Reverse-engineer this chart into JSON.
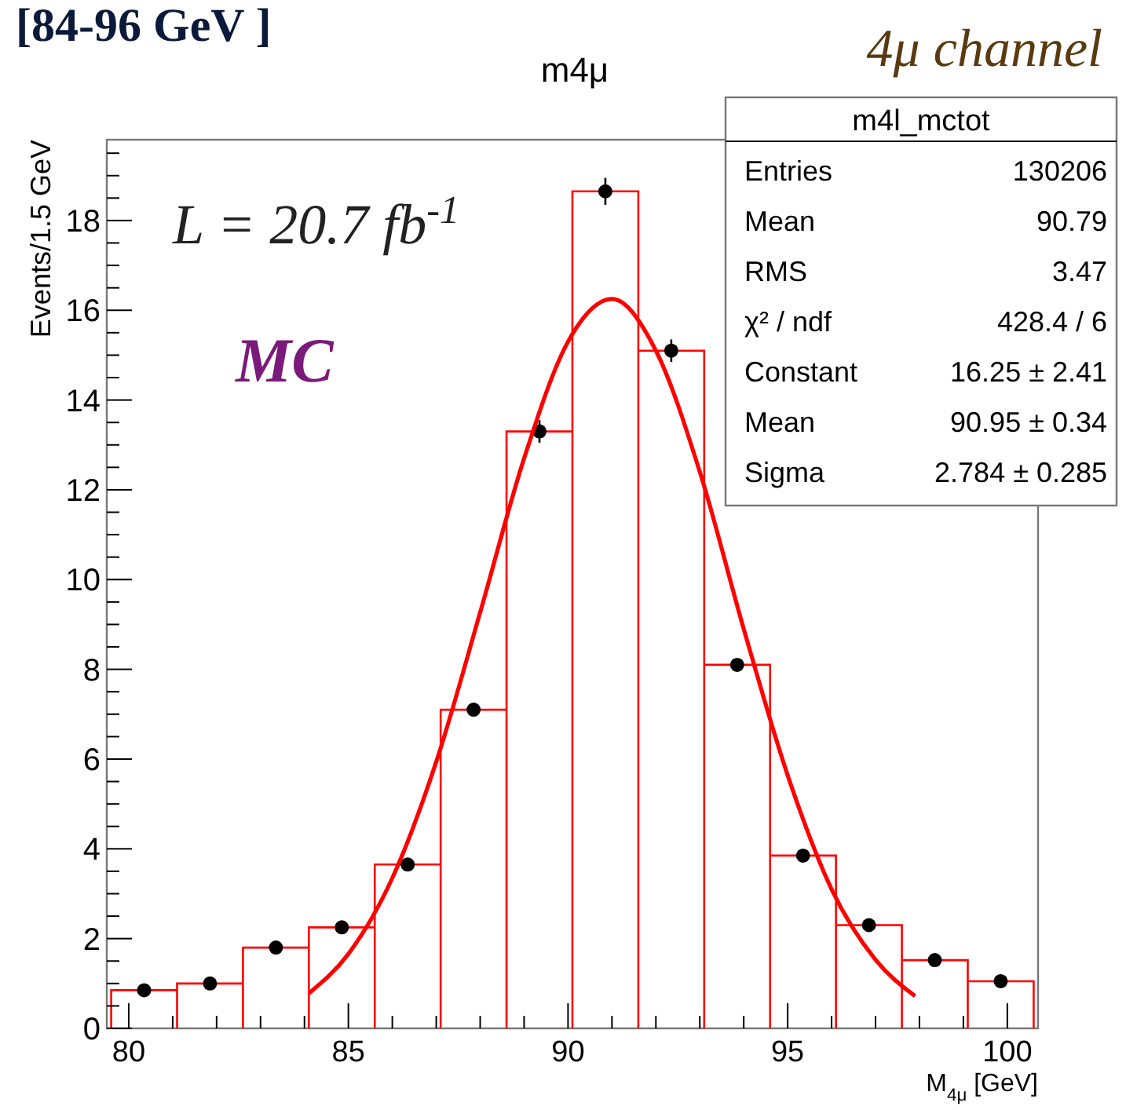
{
  "chart_data": {
    "type": "histogram",
    "title": "m4μ",
    "xlabel": "M$_{4μ}$ [GeV]",
    "ylabel": "Events/1.5 GeV",
    "bins": [
      79.6,
      81.1,
      82.6,
      84.1,
      85.6,
      87.1,
      88.6,
      90.1,
      91.6,
      93.1,
      94.6,
      96.1,
      97.6,
      99.1,
      100.6
    ],
    "values": [
      0.85,
      1.0,
      1.8,
      2.25,
      3.65,
      7.1,
      13.3,
      18.65,
      15.1,
      8.1,
      3.85,
      2.3,
      1.52,
      1.05
    ],
    "color": "#ff0000",
    "series": [
      {
        "type": "scatter",
        "color": "#000000",
        "x": [
          80.35,
          81.85,
          83.35,
          84.85,
          86.35,
          87.85,
          89.35,
          90.85,
          92.35,
          93.85,
          95.35,
          96.85,
          98.35,
          99.85
        ],
        "values": [
          0.85,
          1.0,
          1.8,
          2.25,
          3.65,
          7.1,
          13.3,
          18.65,
          15.1,
          8.1,
          3.85,
          2.3,
          1.52,
          1.05
        ],
        "errors": [
          null,
          null,
          null,
          null,
          null,
          null,
          0.25,
          0.3,
          0.25,
          null,
          null,
          null,
          null,
          null
        ]
      },
      {
        "type": "line",
        "marker": "none",
        "color": "#ff0000",
        "x": [
          84.1,
          85,
          86,
          87,
          88,
          89,
          90,
          91,
          92,
          93,
          94,
          95,
          96,
          97,
          97.9
        ],
        "values": [
          0.78,
          1.66,
          3.35,
          5.94,
          9.27,
          12.7,
          15.3,
          16.25,
          15.1,
          12.4,
          8.9,
          5.64,
          3.1,
          1.53,
          0.72
        ]
      }
    ],
    "marker": "circle",
    "line_style": "solid",
    "grid": false,
    "xlim": [
      79.5,
      100.7
    ],
    "ylim": [
      0,
      19.8
    ],
    "xticks": [
      80,
      {
        "value": 81,
        "label": null
      },
      {
        "value": 82,
        "label": null
      },
      {
        "value": 83,
        "label": null
      },
      {
        "value": 84,
        "label": null
      },
      85,
      {
        "value": 86,
        "label": null
      },
      {
        "value": 87,
        "label": null
      },
      {
        "value": 88,
        "label": null
      },
      {
        "value": 89,
        "label": null
      },
      90,
      {
        "value": 91,
        "label": null
      },
      {
        "value": 92,
        "label": null
      },
      {
        "value": 93,
        "label": null
      },
      {
        "value": 94,
        "label": null
      },
      95,
      {
        "value": 96,
        "label": null
      },
      {
        "value": 97,
        "label": null
      },
      {
        "value": 98,
        "label": null
      },
      {
        "value": 99,
        "label": null
      },
      100
    ],
    "yticks": [
      0,
      {
        "value": 0.5,
        "label": null
      },
      {
        "value": 1,
        "label": null
      },
      {
        "value": 1.5,
        "label": null
      },
      2,
      {
        "value": 2.5,
        "label": null
      },
      {
        "value": 3,
        "label": null
      },
      {
        "value": 3.5,
        "label": null
      },
      4,
      {
        "value": 4.5,
        "label": null
      },
      {
        "value": 5,
        "label": null
      },
      {
        "value": 5.5,
        "label": null
      },
      6,
      {
        "value": 6.5,
        "label": null
      },
      {
        "value": 7,
        "label": null
      },
      {
        "value": 7.5,
        "label": null
      },
      8,
      {
        "value": 8.5,
        "label": null
      },
      {
        "value": 9,
        "label": null
      },
      {
        "value": 9.5,
        "label": null
      },
      10,
      {
        "value": 10.5,
        "label": null
      },
      {
        "value": 11,
        "label": null
      },
      {
        "value": 11.5,
        "label": null
      },
      12,
      {
        "value": 12.5,
        "label": null
      },
      {
        "value": 13,
        "label": null
      },
      {
        "value": 13.5,
        "label": null
      },
      14,
      {
        "value": 14.5,
        "label": null
      },
      {
        "value": 15,
        "label": null
      },
      {
        "value": 15.5,
        "label": null
      },
      16,
      {
        "value": 16.5,
        "label": null
      },
      {
        "value": 17,
        "label": null
      },
      {
        "value": 17.5,
        "label": null
      },
      18,
      {
        "value": 18.5,
        "label": null
      },
      {
        "value": 19,
        "label": null
      },
      {
        "value": 19.5,
        "label": null
      }
    ],
    "annotations": [
      "[84-96 GeV ]",
      "4μ channel",
      "L = 20.7 fb$^{-1}$",
      "MC",
      "m4l_mctot",
      "Entries",
      "130206",
      "Mean",
      "90.79",
      "RMS",
      "3.47",
      "χ² / ndf",
      "428.4 / 6",
      "Constant",
      "16.25 ± 2.41",
      "Mean",
      "90.95 ± 0.34",
      "Sigma",
      "2.784 ± 0.285"
    ]
  }
}
